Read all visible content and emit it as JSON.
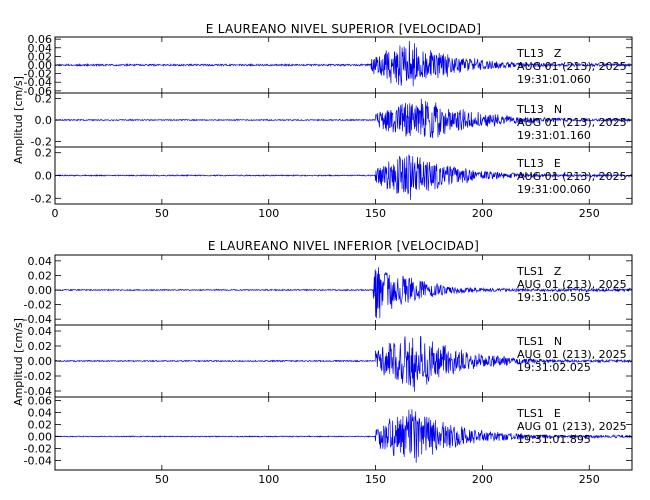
{
  "chart_data": [
    {
      "type": "line",
      "title": "E LAUREANO NIVEL SUPERIOR [VELOCIDAD]",
      "ylabel": "Amplitud [cm/s]",
      "xlabel": "",
      "xlim": [
        0,
        270
      ],
      "x_ticks": [
        "0",
        "50",
        "100",
        "150",
        "200",
        "250"
      ],
      "line_color": "#0000ee",
      "grid": false,
      "channels": [
        {
          "station": "TL13",
          "component": "Z",
          "date": "AUG 01 (213), 2025",
          "time": "19:31:01.060",
          "ylim": [
            -0.065,
            0.065
          ],
          "y_ticks": [
            "0.06",
            "0.04",
            "0.02",
            "0.00",
            "-0.02",
            "-0.04",
            "-0.06"
          ],
          "p_arrival": 148,
          "peak_time": 165,
          "peak_amplitude": 0.06,
          "noise_level": 0.002,
          "decay": 22,
          "seed": 11
        },
        {
          "station": "TL13",
          "component": "N",
          "date": "AUG 01 (213), 2025",
          "time": "19:31:01.160",
          "ylim": [
            -0.25,
            0.25
          ],
          "y_ticks": [
            "0.2",
            "0.0",
            "-0.2"
          ],
          "p_arrival": 150,
          "peak_time": 172,
          "peak_amplitude": 0.22,
          "noise_level": 0.005,
          "decay": 24,
          "seed": 23
        },
        {
          "station": "TL13",
          "component": "E",
          "date": "AUG 01 (213), 2025",
          "time": "19:31:00.060",
          "ylim": [
            -0.25,
            0.25
          ],
          "y_ticks": [
            "0.2",
            "0.0",
            "-0.2"
          ],
          "p_arrival": 150,
          "peak_time": 166,
          "peak_amplitude": 0.22,
          "noise_level": 0.005,
          "decay": 22,
          "seed": 37
        }
      ]
    },
    {
      "type": "line",
      "title": "E LAUREANO NIVEL INFERIOR [VELOCIDAD]",
      "ylabel": "Amplitud [cm/s]",
      "xlabel": "",
      "xlim": [
        0,
        270
      ],
      "x_ticks": [
        "50",
        "100",
        "150",
        "200",
        "250"
      ],
      "line_color": "#0000ee",
      "grid": false,
      "channels": [
        {
          "station": "TLS1",
          "component": "Z",
          "date": "AUG 01 (213), 2025",
          "time": "19:31:00.505",
          "ylim": [
            -0.048,
            0.048
          ],
          "y_ticks": [
            "0.04",
            "0.02",
            "0.00",
            "-0.02",
            "-0.04"
          ],
          "p_arrival": 149,
          "peak_time": 150,
          "peak_amplitude": 0.045,
          "noise_level": 0.0008,
          "decay": 18,
          "seed": 53
        },
        {
          "station": "TLS1",
          "component": "N",
          "date": "AUG 01 (213), 2025",
          "time": "19:31:02.025",
          "ylim": [
            -0.048,
            0.048
          ],
          "y_ticks": [
            "0.04",
            "0.02",
            "0.00",
            "-0.02",
            "-0.04"
          ],
          "p_arrival": 150,
          "peak_time": 168,
          "peak_amplitude": 0.042,
          "noise_level": 0.0008,
          "decay": 22,
          "seed": 71
        },
        {
          "station": "TLS1",
          "component": "E",
          "date": "AUG 01 (213), 2025",
          "time": "19:31:01.895",
          "ylim": [
            -0.056,
            0.066
          ],
          "y_ticks": [
            "0.06",
            "0.04",
            "0.02",
            "0.00",
            "-0.02",
            "-0.04"
          ],
          "p_arrival": 150,
          "peak_time": 166,
          "peak_amplitude": 0.05,
          "noise_level": 0.0008,
          "decay": 22,
          "seed": 89
        }
      ]
    }
  ]
}
